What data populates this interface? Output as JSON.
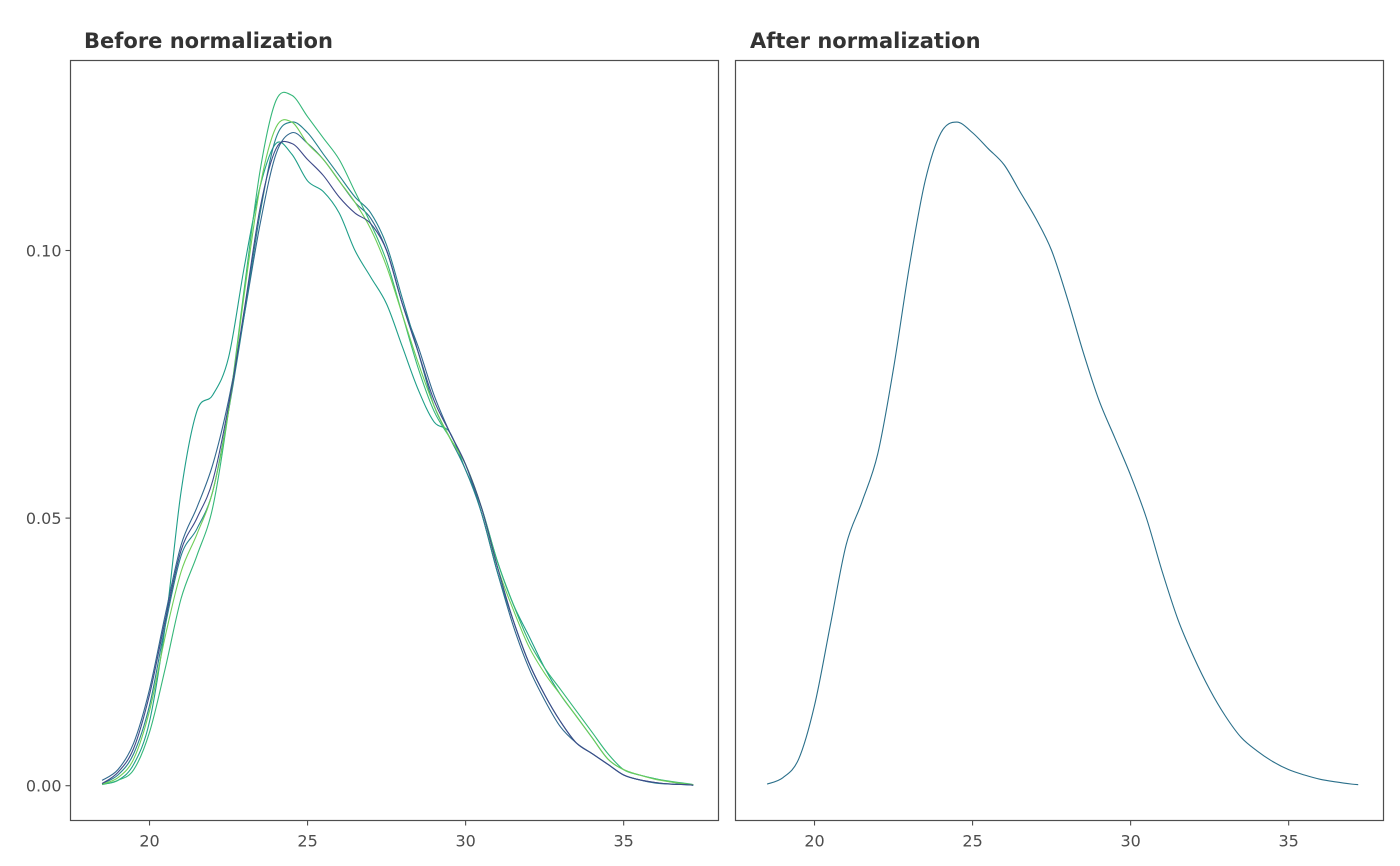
{
  "chart_data": [
    {
      "type": "line",
      "title": "Before normalization",
      "xlabel": "",
      "ylabel": "",
      "xlim": [
        17.5,
        38.0
      ],
      "ylim": [
        -0.0065,
        0.1355
      ],
      "x_ticks": [
        20,
        25,
        30,
        35
      ],
      "y_ticks": [
        0.0,
        0.05,
        0.1
      ],
      "y_tick_labels": [
        "0.00",
        "0.05",
        "0.10"
      ],
      "grid": false,
      "series": [
        {
          "color": "#1f9e89",
          "x": [
            18.5,
            19,
            19.5,
            20,
            20.5,
            21,
            21.5,
            22,
            22.5,
            23,
            23.5,
            24,
            24.5,
            25,
            25.5,
            26,
            26.5,
            27,
            27.5,
            28,
            28.5,
            29,
            29.5,
            30,
            30.5,
            31,
            31.5,
            32,
            32.5,
            33,
            33.5,
            34,
            34.5,
            35,
            35.5,
            36,
            36.5,
            37,
            37.2
          ],
          "y": [
            0.0003,
            0.001,
            0.004,
            0.012,
            0.03,
            0.055,
            0.07,
            0.073,
            0.08,
            0.097,
            0.112,
            0.12,
            0.118,
            0.113,
            0.111,
            0.107,
            0.1,
            0.095,
            0.09,
            0.082,
            0.074,
            0.068,
            0.066,
            0.059,
            0.052,
            0.042,
            0.034,
            0.028,
            0.022,
            0.017,
            0.013,
            0.009,
            0.005,
            0.003,
            0.002,
            0.0013,
            0.0007,
            0.0003,
            0.0002
          ]
        },
        {
          "color": "#31688e",
          "x": [
            18.5,
            19,
            19.5,
            20,
            20.5,
            21,
            21.5,
            22,
            22.5,
            23,
            23.5,
            24,
            24.5,
            25,
            25.5,
            26,
            26.5,
            27,
            27.5,
            28,
            28.5,
            29,
            29.5,
            30,
            30.5,
            31,
            31.5,
            32,
            32.5,
            33,
            33.5,
            34,
            34.5,
            35,
            35.5,
            36,
            36.5,
            37,
            37.2
          ],
          "y": [
            0.001,
            0.003,
            0.008,
            0.018,
            0.032,
            0.045,
            0.052,
            0.06,
            0.072,
            0.088,
            0.105,
            0.118,
            0.122,
            0.12,
            0.117,
            0.113,
            0.109,
            0.106,
            0.1,
            0.09,
            0.082,
            0.073,
            0.066,
            0.06,
            0.051,
            0.04,
            0.03,
            0.022,
            0.016,
            0.011,
            0.008,
            0.006,
            0.004,
            0.002,
            0.0011,
            0.0006,
            0.0003,
            0.0002,
            0.0001
          ]
        },
        {
          "color": "#26828e",
          "x": [
            18.5,
            19,
            19.5,
            20,
            20.5,
            21,
            21.5,
            22,
            22.5,
            23,
            23.5,
            24,
            24.5,
            25,
            25.5,
            26,
            26.5,
            27,
            27.5,
            28,
            28.5,
            29,
            29.5,
            30,
            30.5,
            31,
            31.5,
            32,
            32.5,
            33,
            33.5,
            34,
            34.5,
            35,
            35.5,
            36,
            36.5,
            37,
            37.2
          ],
          "y": [
            0.0004,
            0.002,
            0.006,
            0.015,
            0.03,
            0.043,
            0.048,
            0.055,
            0.07,
            0.088,
            0.107,
            0.121,
            0.124,
            0.122,
            0.118,
            0.114,
            0.11,
            0.107,
            0.101,
            0.091,
            0.081,
            0.071,
            0.065,
            0.059,
            0.051,
            0.04,
            0.031,
            0.023,
            0.017,
            0.012,
            0.008,
            0.006,
            0.004,
            0.002,
            0.0011,
            0.0005,
            0.0003,
            0.0002,
            0.0001
          ]
        },
        {
          "color": "#35b779",
          "x": [
            18.5,
            19,
            19.5,
            20,
            20.5,
            21,
            21.5,
            22,
            22.5,
            23,
            23.5,
            24,
            24.5,
            25,
            25.5,
            26,
            26.5,
            27,
            27.5,
            28,
            28.5,
            29,
            29.5,
            30,
            30.5,
            31,
            31.5,
            32,
            32.5,
            33,
            33.5,
            34,
            34.5,
            35,
            35.5,
            36,
            36.5,
            37,
            37.2
          ],
          "y": [
            0.0002,
            0.001,
            0.003,
            0.01,
            0.022,
            0.035,
            0.043,
            0.052,
            0.07,
            0.093,
            0.115,
            0.128,
            0.129,
            0.125,
            0.121,
            0.117,
            0.111,
            0.105,
            0.098,
            0.088,
            0.078,
            0.07,
            0.065,
            0.06,
            0.052,
            0.042,
            0.034,
            0.027,
            0.022,
            0.018,
            0.014,
            0.01,
            0.006,
            0.003,
            0.002,
            0.0013,
            0.0008,
            0.0004,
            0.0002
          ]
        },
        {
          "color": "#6ece58",
          "x": [
            18.5,
            19,
            19.5,
            20,
            20.5,
            21,
            21.5,
            22,
            22.5,
            23,
            23.5,
            24,
            24.5,
            25,
            25.5,
            26,
            26.5,
            27,
            27.5,
            28,
            28.5,
            29,
            29.5,
            30,
            30.5,
            31,
            31.5,
            32,
            32.5,
            33,
            33.5,
            34,
            34.5,
            35,
            35.5,
            36,
            36.5,
            37,
            37.2
          ],
          "y": [
            0.0003,
            0.0015,
            0.005,
            0.014,
            0.028,
            0.04,
            0.047,
            0.055,
            0.07,
            0.092,
            0.112,
            0.123,
            0.124,
            0.12,
            0.117,
            0.113,
            0.109,
            0.104,
            0.097,
            0.088,
            0.079,
            0.071,
            0.065,
            0.06,
            0.052,
            0.041,
            0.033,
            0.026,
            0.021,
            0.017,
            0.013,
            0.009,
            0.005,
            0.003,
            0.002,
            0.0012,
            0.0007,
            0.0003,
            0.0002
          ]
        },
        {
          "color": "#3e4a89",
          "x": [
            18.5,
            19,
            19.5,
            20,
            20.5,
            21,
            21.5,
            22,
            22.5,
            23,
            23.5,
            24,
            24.5,
            25,
            25.5,
            26,
            26.5,
            27,
            27.5,
            28,
            28.5,
            29,
            29.5,
            30,
            30.5,
            31,
            31.5,
            32,
            32.5,
            33,
            33.5,
            34,
            34.5,
            35,
            35.5,
            36,
            36.5,
            37,
            37.2
          ],
          "y": [
            0.0004,
            0.0025,
            0.007,
            0.017,
            0.031,
            0.044,
            0.05,
            0.057,
            0.071,
            0.089,
            0.108,
            0.119,
            0.12,
            0.117,
            0.114,
            0.11,
            0.107,
            0.105,
            0.1,
            0.09,
            0.081,
            0.072,
            0.066,
            0.06,
            0.052,
            0.041,
            0.031,
            0.023,
            0.017,
            0.012,
            0.008,
            0.006,
            0.004,
            0.002,
            0.0011,
            0.0006,
            0.0003,
            0.0002,
            0.0001
          ]
        }
      ]
    },
    {
      "type": "line",
      "title": "After normalization",
      "xlabel": "",
      "ylabel": "",
      "xlim": [
        17.5,
        38.0
      ],
      "ylim": [
        -0.0065,
        0.1355
      ],
      "x_ticks": [
        20,
        25,
        30,
        35
      ],
      "y_ticks": [],
      "grid": false,
      "series": [
        {
          "color": "#2a6f8a",
          "x": [
            18.5,
            19,
            19.5,
            20,
            20.5,
            21,
            21.5,
            22,
            22.5,
            23,
            23.5,
            24,
            24.5,
            25,
            25.5,
            26,
            26.5,
            27,
            27.5,
            28,
            28.5,
            29,
            29.5,
            30,
            30.5,
            31,
            31.5,
            32,
            32.5,
            33,
            33.5,
            34,
            34.5,
            35,
            35.5,
            36,
            36.5,
            37,
            37.2
          ],
          "y": [
            0.0003,
            0.0015,
            0.005,
            0.015,
            0.03,
            0.045,
            0.053,
            0.062,
            0.078,
            0.097,
            0.113,
            0.122,
            0.124,
            0.122,
            0.119,
            0.116,
            0.111,
            0.106,
            0.1,
            0.091,
            0.081,
            0.072,
            0.065,
            0.058,
            0.05,
            0.04,
            0.031,
            0.024,
            0.018,
            0.013,
            0.009,
            0.0065,
            0.0045,
            0.003,
            0.002,
            0.0012,
            0.0007,
            0.0003,
            0.0002
          ]
        }
      ]
    }
  ]
}
